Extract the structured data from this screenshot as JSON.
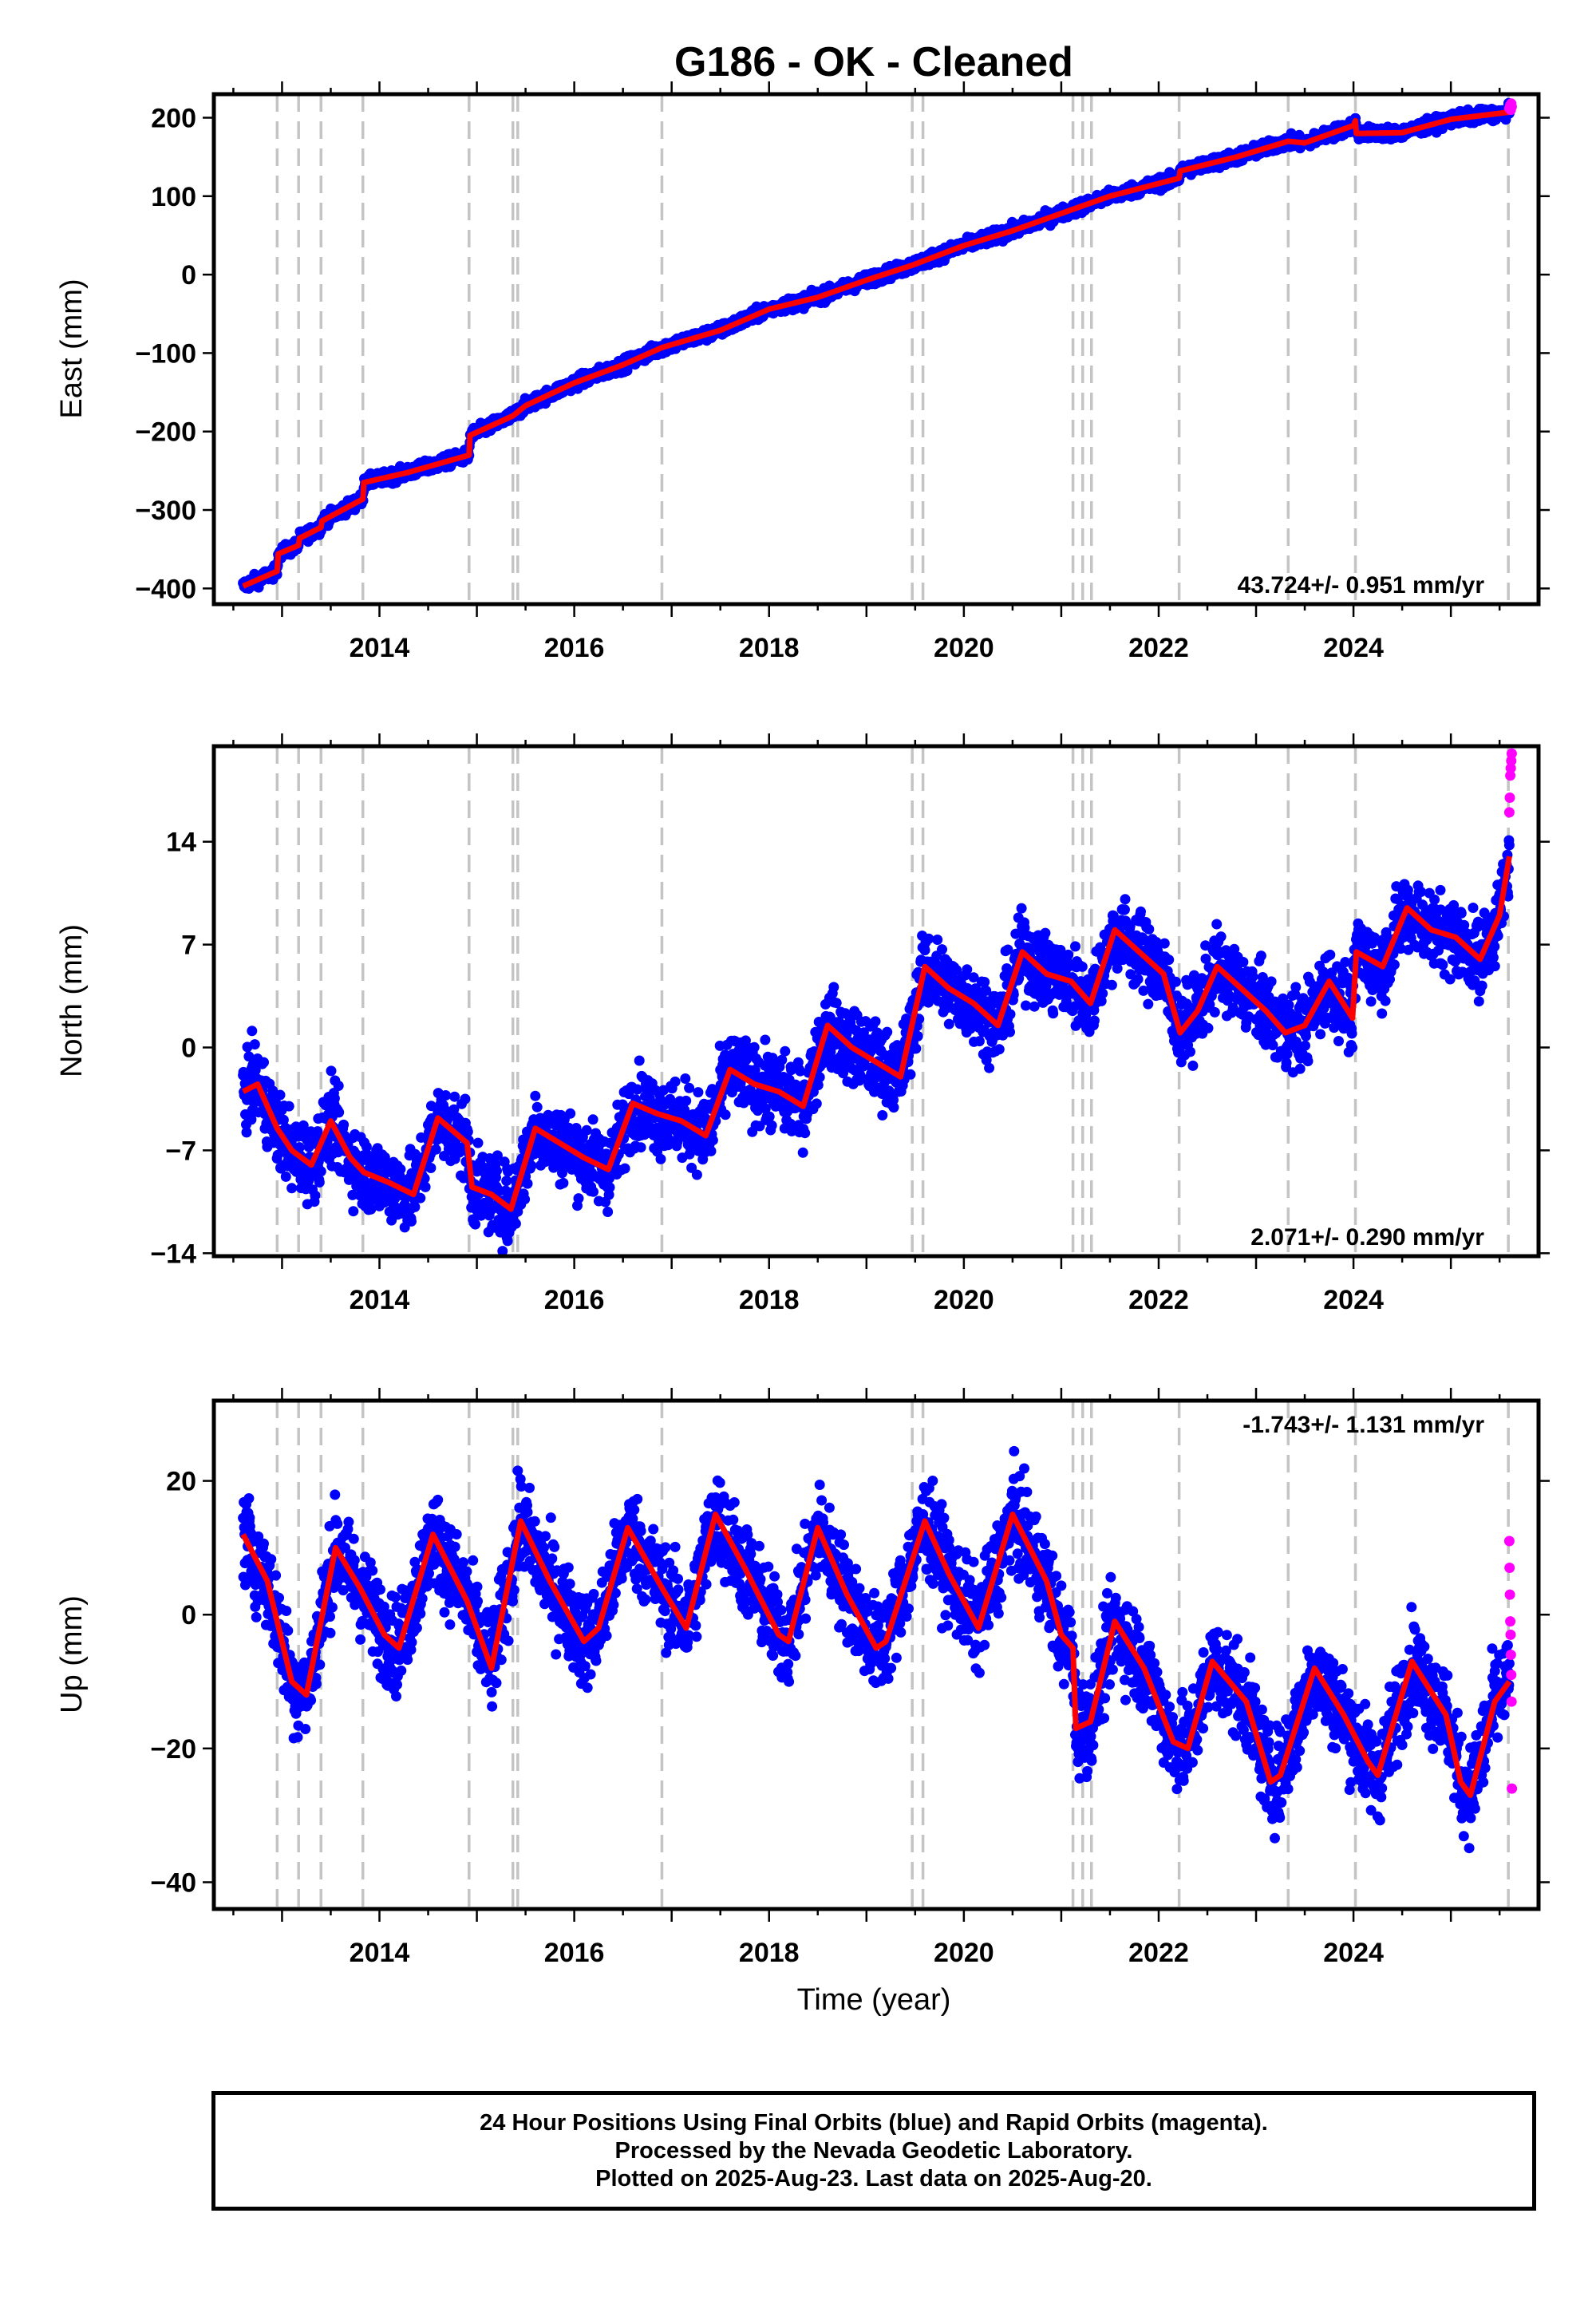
{
  "title": "G186  - OK - Cleaned",
  "xlabel": "Time (year)",
  "footer": {
    "line1": "24 Hour Positions Using Final Orbits (blue) and Rapid Orbits (magenta).",
    "line2": "Processed by the Nevada Geodetic Laboratory.",
    "line3": "Plotted on 2025-Aug-23. Last data on 2025-Aug-20."
  },
  "colors": {
    "final_orbits": "#0000ff",
    "rapid_orbits": "#ff00ff",
    "model": "#ff0000",
    "event_lines": "#c4c4c4"
  },
  "chart_data": [
    {
      "type": "scatter",
      "component": "East",
      "ylabel": "East (mm)",
      "rate": "43.724+/- 0.951 mm/yr",
      "xlim": [
        2012.3,
        2025.9
      ],
      "ylim": [
        -420,
        230
      ],
      "yticks": [
        200,
        100,
        0,
        -100,
        -200,
        -300,
        -400
      ],
      "xticks": [
        2014,
        2016,
        2018,
        2020,
        2022,
        2024
      ],
      "grid": false,
      "events": [
        2012.95,
        2013.17,
        2013.4,
        2013.83,
        2014.92,
        2015.37,
        2015.42,
        2016.9,
        2019.47,
        2019.58,
        2021.12,
        2021.22,
        2021.31,
        2022.21,
        2023.33,
        2024.02,
        2025.59
      ],
      "model": {
        "x": [
          2012.6,
          2012.95,
          2012.96,
          2013.17,
          2013.18,
          2013.4,
          2013.41,
          2013.83,
          2013.84,
          2014.3,
          2014.92,
          2014.93,
          2015.37,
          2015.5,
          2016.0,
          2016.5,
          2016.9,
          2017.5,
          2018.0,
          2018.5,
          2019.0,
          2019.47,
          2020.0,
          2020.5,
          2021.0,
          2021.5,
          2022.21,
          2022.22,
          2022.8,
          2023.33,
          2023.5,
          2024.0,
          2024.02,
          2024.03,
          2024.5,
          2025.0,
          2025.59,
          2025.62
        ],
        "y": [
          -397,
          -378,
          -356,
          -345,
          -336,
          -322,
          -314,
          -286,
          -265,
          -252,
          -230,
          -205,
          -180,
          -167,
          -138,
          -115,
          -93,
          -71,
          -44,
          -29,
          -7,
          12,
          37,
          56,
          78,
          100,
          123,
          132,
          150,
          170,
          168,
          190,
          196,
          180,
          181,
          198,
          207,
          212
        ]
      },
      "noise": 4,
      "rapid": {
        "x": [
          2025.6,
          2025.61,
          2025.615,
          2025.62,
          2025.625
        ],
        "y": [
          212,
          216,
          210,
          218,
          214
        ]
      }
    },
    {
      "type": "scatter",
      "component": "North",
      "ylabel": "North (mm)",
      "rate": "2.071+/- 0.290 mm/yr",
      "xlim": [
        2012.3,
        2025.9
      ],
      "ylim": [
        -14.2,
        20.5
      ],
      "yticks": [
        14,
        7,
        0,
        -7,
        -14
      ],
      "xticks": [
        2014,
        2016,
        2018,
        2020,
        2022,
        2024
      ],
      "grid": false,
      "events": [
        2012.95,
        2013.17,
        2013.4,
        2013.83,
        2014.92,
        2015.37,
        2015.42,
        2016.9,
        2019.47,
        2019.58,
        2021.12,
        2021.22,
        2021.31,
        2022.21,
        2023.33,
        2024.02,
        2025.59
      ],
      "model": {
        "x": [
          2012.6,
          2012.75,
          2012.95,
          2013.1,
          2013.3,
          2013.5,
          2013.7,
          2013.84,
          2014.1,
          2014.35,
          2014.6,
          2014.9,
          2014.95,
          2015.15,
          2015.35,
          2015.6,
          2015.85,
          2016.1,
          2016.35,
          2016.6,
          2016.85,
          2017.1,
          2017.35,
          2017.6,
          2017.85,
          2018.1,
          2018.35,
          2018.6,
          2018.85,
          2019.1,
          2019.35,
          2019.6,
          2019.85,
          2020.1,
          2020.35,
          2020.6,
          2020.85,
          2021.1,
          2021.3,
          2021.55,
          2021.8,
          2022.05,
          2022.22,
          2022.4,
          2022.6,
          2022.85,
          2023.1,
          2023.3,
          2023.5,
          2023.75,
          2023.99,
          2024.03,
          2024.3,
          2024.55,
          2024.8,
          2025.05,
          2025.3,
          2025.5,
          2025.6
        ],
        "y": [
          -3,
          -2.5,
          -5.5,
          -7,
          -8,
          -5,
          -7.5,
          -8.5,
          -9.2,
          -10,
          -4.8,
          -6.5,
          -9.5,
          -10,
          -11,
          -5.5,
          -6.5,
          -7.5,
          -8.3,
          -3.8,
          -4.5,
          -5,
          -6,
          -1.5,
          -2.5,
          -3,
          -4,
          1.5,
          0,
          -1,
          -2,
          5.5,
          4,
          3,
          1.5,
          6.5,
          5,
          4.5,
          3,
          8,
          6.5,
          5,
          1,
          2.5,
          5.5,
          4,
          2.5,
          1,
          1.5,
          4.5,
          2,
          6.5,
          5.5,
          9.5,
          8,
          7.5,
          6,
          9,
          13
        ]
      },
      "noise": 1.3,
      "rapid": {
        "x": [
          2025.6,
          2025.605,
          2025.61,
          2025.615,
          2025.62,
          2025.625
        ],
        "y": [
          16,
          17,
          18.5,
          19,
          19.5,
          20
        ]
      }
    },
    {
      "type": "scatter",
      "component": "Up",
      "ylabel": "Up (mm)",
      "rate": "-1.743+/- 1.131 mm/yr",
      "xlim": [
        2012.3,
        2025.9
      ],
      "ylim": [
        -44,
        32
      ],
      "yticks": [
        20,
        0,
        -20,
        -40
      ],
      "xticks": [
        2014,
        2016,
        2018,
        2020,
        2022,
        2024
      ],
      "grid": false,
      "events": [
        2012.95,
        2013.17,
        2013.4,
        2013.83,
        2014.92,
        2015.37,
        2015.42,
        2016.9,
        2019.47,
        2019.58,
        2021.12,
        2021.22,
        2021.31,
        2022.21,
        2023.33,
        2024.02,
        2025.59
      ],
      "model": {
        "x": [
          2012.6,
          2012.85,
          2013.1,
          2013.25,
          2013.55,
          2013.8,
          2014.05,
          2014.2,
          2014.55,
          2014.9,
          2015.15,
          2015.45,
          2015.75,
          2016.1,
          2016.25,
          2016.55,
          2016.9,
          2017.15,
          2017.45,
          2017.75,
          2018.1,
          2018.2,
          2018.5,
          2018.8,
          2019.1,
          2019.2,
          2019.6,
          2019.85,
          2020.15,
          2020.5,
          2020.85,
          2021.0,
          2021.12,
          2021.15,
          2021.3,
          2021.55,
          2021.85,
          2022.15,
          2022.3,
          2022.55,
          2022.9,
          2023.15,
          2023.25,
          2023.6,
          2023.9,
          2024.15,
          2024.25,
          2024.6,
          2024.95,
          2025.1,
          2025.2,
          2025.45,
          2025.6
        ],
        "y": [
          12,
          5,
          -10,
          -12,
          10,
          4,
          -3,
          -5,
          12,
          2,
          -8,
          14,
          5,
          -4,
          -2,
          13,
          4,
          -2,
          15,
          7,
          -3,
          -4,
          13,
          3,
          -5,
          -4,
          14,
          6,
          -2,
          15,
          5,
          -3,
          -5,
          -17,
          -16,
          -1,
          -8,
          -19,
          -20,
          -7,
          -13,
          -25,
          -24,
          -8,
          -15,
          -22,
          -24,
          -7,
          -15,
          -25,
          -27,
          -13,
          -10
        ]
      },
      "noise": 3.5,
      "rapid": {
        "x": [
          2025.6,
          2025.603,
          2025.606,
          2025.61,
          2025.613,
          2025.616,
          2025.62,
          2025.623,
          2025.626
        ],
        "y": [
          11,
          7,
          3,
          -1,
          -3,
          -6,
          -9,
          -13,
          -26
        ]
      }
    }
  ]
}
